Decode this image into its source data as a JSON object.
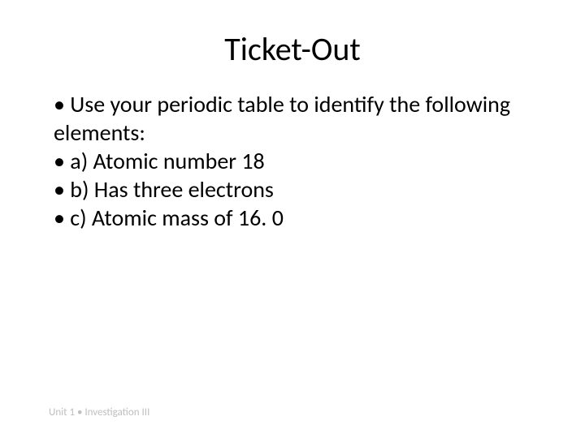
{
  "slide": {
    "title": "Ticket-Out",
    "title_fontsize": 40,
    "title_color": "#000000",
    "body_fontsize": 28,
    "body_color": "#000000",
    "bullets": [
      "• Use your periodic table to identify the following elements:",
      "• a) Atomic number 18",
      "• b) Has three electrons",
      "• c) Atomic mass of 16. 0"
    ],
    "footer": "Unit 1 • Investigation III",
    "footer_color": "#bfbfbf",
    "footer_fontsize": 13,
    "background_color": "#ffffff"
  }
}
